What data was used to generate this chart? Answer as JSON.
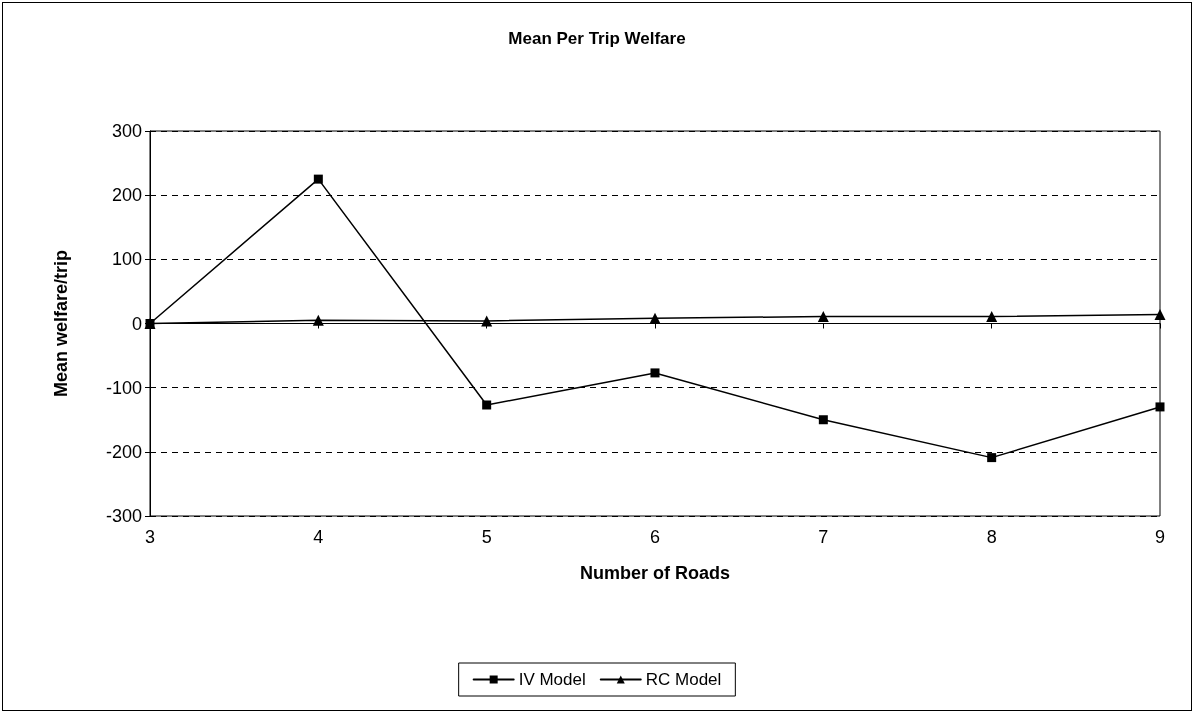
{
  "chart_data": {
    "type": "line",
    "title": "Mean Per Trip Welfare",
    "xlabel": "Number of Roads",
    "ylabel": "Mean welfare/trip",
    "x": [
      3,
      4,
      5,
      6,
      7,
      8,
      9
    ],
    "series": [
      {
        "name": "IV Model",
        "color": "#000000",
        "marker": "square",
        "values": [
          0,
          225,
          -127,
          -77,
          -150,
          -209,
          -130
        ]
      },
      {
        "name": "RC Model",
        "color": "#000000",
        "marker": "triangle",
        "values": [
          0,
          5,
          4,
          8,
          11,
          11,
          14
        ]
      }
    ],
    "xlim": [
      3,
      9
    ],
    "xticks": [
      3,
      4,
      5,
      6,
      7,
      8,
      9
    ],
    "ylim": [
      -300,
      300
    ],
    "yticks": [
      -300,
      -200,
      -100,
      0,
      100,
      200,
      300
    ],
    "grid": "y",
    "legend": "bottom",
    "line_style": "solid"
  }
}
